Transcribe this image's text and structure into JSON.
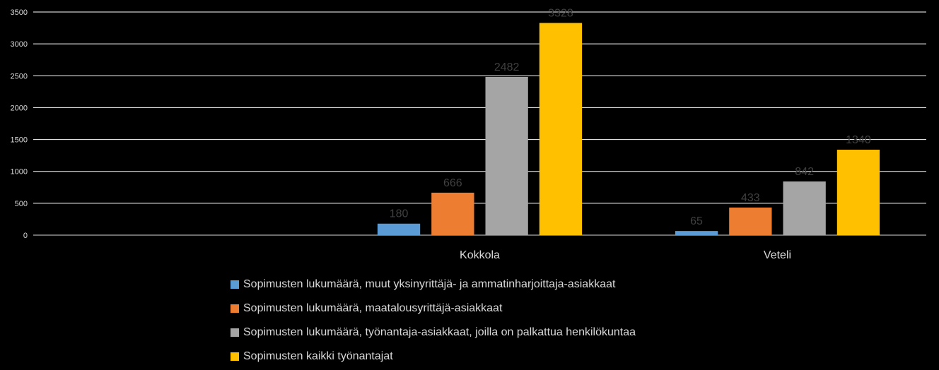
{
  "chart_data": {
    "type": "bar",
    "categories": [
      "",
      "Kokkola",
      "Veteli"
    ],
    "series": [
      {
        "name": "Sopimusten lukumäärä, muut yksinyrittäjä- ja ammatinharjoittaja-asiakkaat",
        "color": "#5b9bd5",
        "values": [
          null,
          180,
          65
        ]
      },
      {
        "name": "Sopimusten lukumäärä, maatalousyrittäjä-asiakkaat",
        "color": "#ed7d31",
        "values": [
          null,
          666,
          433
        ]
      },
      {
        "name": "Sopimusten lukumäärä, työnantaja-asiakkaat, joilla on palkattua henkilökuntaa",
        "color": "#a5a5a5",
        "values": [
          null,
          2482,
          842
        ]
      },
      {
        "name": "Sopimusten kaikki työnantajat",
        "color": "#ffc000",
        "values": [
          null,
          3328,
          1340
        ]
      }
    ],
    "ylim": [
      0,
      3500
    ],
    "yticks": [
      "0",
      "500",
      "1000",
      "1500",
      "2000",
      "2500",
      "3000",
      "3500"
    ],
    "grid": true,
    "legend_position": "bottom",
    "gridline_color": "#ffffff",
    "data_label_color": "#404040",
    "text_color": "#d9d9d9",
    "background": "#000000",
    "title": "",
    "xlabel": "",
    "ylabel": ""
  }
}
